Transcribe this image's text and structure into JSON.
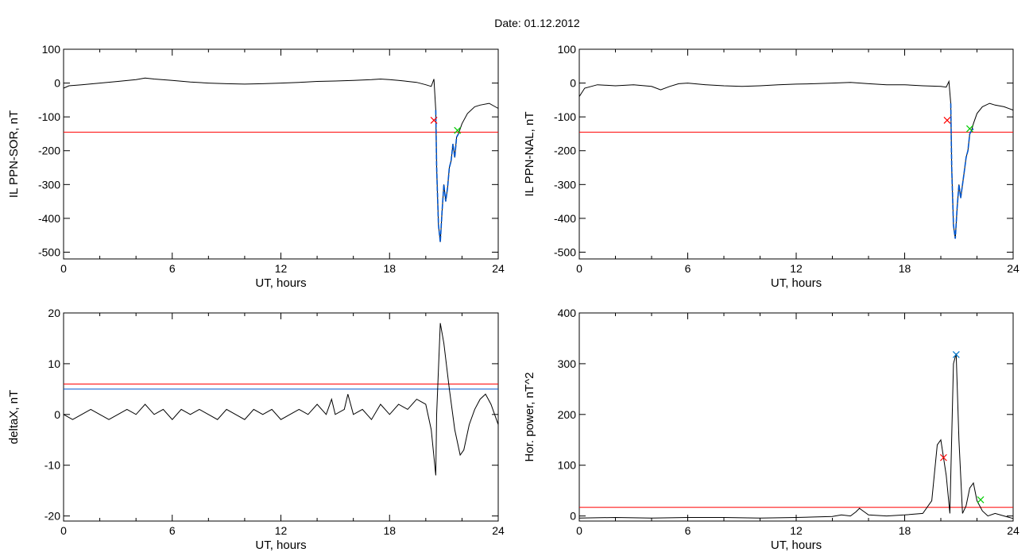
{
  "header": {
    "date_text": "Date:  01.12.2012"
  },
  "colors": {
    "trace": "#000000",
    "threshold": "#ff0000",
    "fit": "#0055cc",
    "onset_marker": "#ff0000",
    "peak_marker": "#0077cc",
    "end_marker": "#00cc00"
  },
  "chart_data": [
    {
      "type": "line",
      "ylabel": "IL PPN-SOR, nT",
      "xlabel": "UT, hours",
      "xlim": [
        0,
        24
      ],
      "ylim": [
        -520,
        100
      ],
      "xticks": [
        0,
        6,
        12,
        18,
        24
      ],
      "yticks": [
        100,
        0,
        -100,
        -200,
        -300,
        -400,
        -500
      ],
      "series": [
        {
          "role": "trace",
          "x": [
            0,
            0.3,
            1,
            2,
            3,
            4,
            4.5,
            5,
            6,
            7,
            8,
            9,
            10,
            11,
            12,
            13,
            14,
            15,
            16,
            17,
            17.5,
            18,
            18.5,
            19,
            19.5,
            20,
            20.3,
            20.45,
            20.55,
            20.6,
            20.7,
            20.8,
            20.9,
            21.0,
            21.1,
            21.2,
            21.3,
            21.4,
            21.5,
            21.6,
            21.7,
            21.8,
            22.0,
            22.3,
            22.7,
            23.0,
            23.5,
            24
          ],
          "y": [
            -15,
            -8,
            -5,
            0,
            5,
            10,
            15,
            12,
            8,
            3,
            0,
            -2,
            -3,
            -2,
            0,
            2,
            5,
            6,
            8,
            10,
            12,
            10,
            8,
            5,
            2,
            -5,
            -10,
            12,
            -80,
            -250,
            -420,
            -470,
            -380,
            -300,
            -350,
            -310,
            -250,
            -230,
            -180,
            -220,
            -160,
            -150,
            -120,
            -90,
            -70,
            -65,
            -60,
            -75
          ]
        },
        {
          "role": "fit",
          "x": [
            20.55,
            20.6,
            20.7,
            20.8,
            20.9,
            21.0,
            21.1,
            21.2,
            21.3,
            21.4,
            21.5,
            21.6,
            21.7,
            21.8
          ],
          "y": [
            -80,
            -250,
            -420,
            -470,
            -380,
            -300,
            -350,
            -310,
            -250,
            -230,
            -180,
            -220,
            -160,
            -150
          ]
        }
      ],
      "threshold": -145,
      "markers": [
        {
          "role": "onset",
          "x": 20.45,
          "y": -110
        },
        {
          "role": "end",
          "x": 21.75,
          "y": -140
        }
      ]
    },
    {
      "type": "line",
      "ylabel": "IL PPN-NAL, nT",
      "xlabel": "UT, hours",
      "xlim": [
        0,
        24
      ],
      "ylim": [
        -520,
        100
      ],
      "xticks": [
        0,
        6,
        12,
        18,
        24
      ],
      "yticks": [
        100,
        0,
        -100,
        -200,
        -300,
        -400,
        -500
      ],
      "series": [
        {
          "role": "trace",
          "x": [
            0,
            0.3,
            1,
            2,
            3,
            4,
            4.5,
            5,
            5.5,
            6,
            7,
            8,
            9,
            10,
            11,
            12,
            13,
            14,
            15,
            16,
            17,
            18,
            19,
            20,
            20.3,
            20.45,
            20.55,
            20.6,
            20.7,
            20.8,
            20.9,
            21.0,
            21.1,
            21.2,
            21.3,
            21.4,
            21.5,
            21.6,
            21.7,
            21.8,
            22.0,
            22.3,
            22.7,
            23.0,
            23.5,
            24
          ],
          "y": [
            -40,
            -15,
            -5,
            -8,
            -5,
            -10,
            -20,
            -10,
            -2,
            0,
            -5,
            -8,
            -10,
            -8,
            -5,
            -3,
            -2,
            0,
            2,
            -2,
            -5,
            -5,
            -8,
            -10,
            -12,
            5,
            -60,
            -250,
            -420,
            -460,
            -370,
            -300,
            -340,
            -300,
            -260,
            -220,
            -200,
            -150,
            -140,
            -120,
            -90,
            -70,
            -60,
            -65,
            -70,
            -80
          ]
        },
        {
          "role": "fit",
          "x": [
            20.55,
            20.6,
            20.7,
            20.8,
            20.9,
            21.0,
            21.1,
            21.2,
            21.3,
            21.4,
            21.5,
            21.6,
            21.7,
            21.8
          ],
          "y": [
            -60,
            -250,
            -420,
            -460,
            -370,
            -300,
            -340,
            -300,
            -260,
            -220,
            -200,
            -150,
            -140,
            -135
          ]
        }
      ],
      "threshold": -145,
      "markers": [
        {
          "role": "onset",
          "x": 20.35,
          "y": -110
        },
        {
          "role": "end",
          "x": 21.6,
          "y": -135
        }
      ]
    },
    {
      "type": "line",
      "ylabel": "deltaX, nT",
      "xlabel": "UT, hours",
      "xlim": [
        0,
        24
      ],
      "ylim": [
        -21,
        20
      ],
      "xticks": [
        0,
        6,
        12,
        18,
        24
      ],
      "yticks": [
        20,
        10,
        0,
        -10,
        -20
      ],
      "series": [
        {
          "role": "trace",
          "x": [
            0,
            0.5,
            1,
            1.5,
            2,
            2.5,
            3,
            3.5,
            4,
            4.5,
            5,
            5.5,
            6,
            6.5,
            7,
            7.5,
            8,
            8.5,
            9,
            9.5,
            10,
            10.5,
            11,
            11.5,
            12,
            12.5,
            13,
            13.5,
            14,
            14.5,
            14.8,
            15,
            15.5,
            15.7,
            16,
            16.5,
            17,
            17.5,
            18,
            18.5,
            19,
            19.5,
            20,
            20.3,
            20.55,
            20.6,
            20.8,
            21.0,
            21.3,
            21.6,
            21.9,
            22.1,
            22.4,
            22.7,
            23.0,
            23.3,
            23.6,
            24
          ],
          "y": [
            0,
            -1,
            0,
            1,
            0,
            -1,
            0,
            1,
            0,
            2,
            0,
            1,
            -1,
            1,
            0,
            1,
            0,
            -1,
            1,
            0,
            -1,
            1,
            0,
            1,
            -1,
            0,
            1,
            0,
            2,
            0,
            3,
            0,
            1,
            4,
            0,
            1,
            -1,
            2,
            0,
            2,
            1,
            3,
            2,
            -3,
            -12,
            0,
            18,
            14,
            5,
            -3,
            -8,
            -7,
            -2,
            1,
            3,
            4,
            2,
            -2
          ]
        }
      ],
      "threshold": 6,
      "reference": 5
    },
    {
      "type": "line",
      "ylabel": "Hor. power, nT^2",
      "xlabel": "UT, hours",
      "xlim": [
        0,
        24
      ],
      "ylim": [
        -10,
        400
      ],
      "xticks": [
        0,
        6,
        12,
        18,
        24
      ],
      "yticks": [
        400,
        300,
        200,
        100,
        0
      ],
      "series": [
        {
          "role": "trace",
          "x": [
            0,
            2,
            4,
            6,
            8,
            10,
            12,
            13,
            14,
            14.5,
            15,
            15.3,
            15.5,
            16,
            17,
            18,
            19,
            19.5,
            19.8,
            20.0,
            20.3,
            20.5,
            20.7,
            20.85,
            21.0,
            21.2,
            21.4,
            21.6,
            21.8,
            22.0,
            22.3,
            22.6,
            23.0,
            23.5,
            24
          ],
          "y": [
            -4,
            -3,
            -4,
            -3,
            -3,
            -4,
            -3,
            -2,
            -1,
            2,
            0,
            8,
            15,
            2,
            0,
            2,
            5,
            30,
            140,
            150,
            80,
            5,
            300,
            320,
            150,
            5,
            20,
            55,
            65,
            30,
            10,
            0,
            5,
            0,
            -5
          ]
        }
      ],
      "threshold": 17,
      "markers": [
        {
          "role": "onset",
          "x": 20.15,
          "y": 115
        },
        {
          "role": "peak",
          "x": 20.85,
          "y": 318
        },
        {
          "role": "end",
          "x": 22.2,
          "y": 32
        }
      ]
    }
  ]
}
